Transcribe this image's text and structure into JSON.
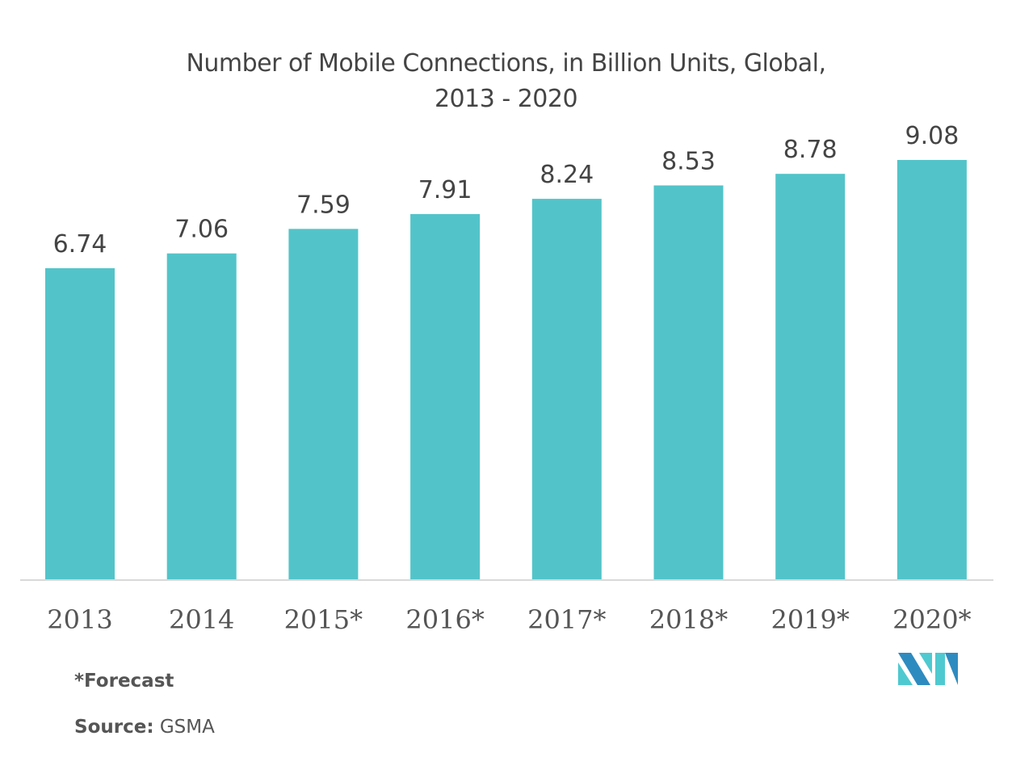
{
  "chart_data": {
    "type": "bar",
    "title": "Number of Mobile Connections, in Billion Units, Global,",
    "subtitle": "2013 - 2020",
    "categories": [
      "2013",
      "2014",
      "2015*",
      "2016*",
      "2017*",
      "2018*",
      "2019*",
      "2020*"
    ],
    "values": [
      6.74,
      7.06,
      7.59,
      7.91,
      8.24,
      8.53,
      8.78,
      9.08
    ],
    "value_labels": [
      "6.74",
      "7.06",
      "7.59",
      "7.91",
      "8.24",
      "8.53",
      "8.78",
      "9.08"
    ],
    "xlabel": "",
    "ylabel": "",
    "ylim": [
      0,
      9.08
    ],
    "grid": false,
    "bar_color": "#52c4c9",
    "axis_color": "#d9d9d9"
  },
  "footer": {
    "forecast_note": "*Forecast",
    "source_label": "Source:",
    "source_value": "GSMA"
  },
  "logo": {
    "name": "mordor-intelligence-logo",
    "colors": [
      "#2e8bc0",
      "#4fc9d0"
    ]
  }
}
